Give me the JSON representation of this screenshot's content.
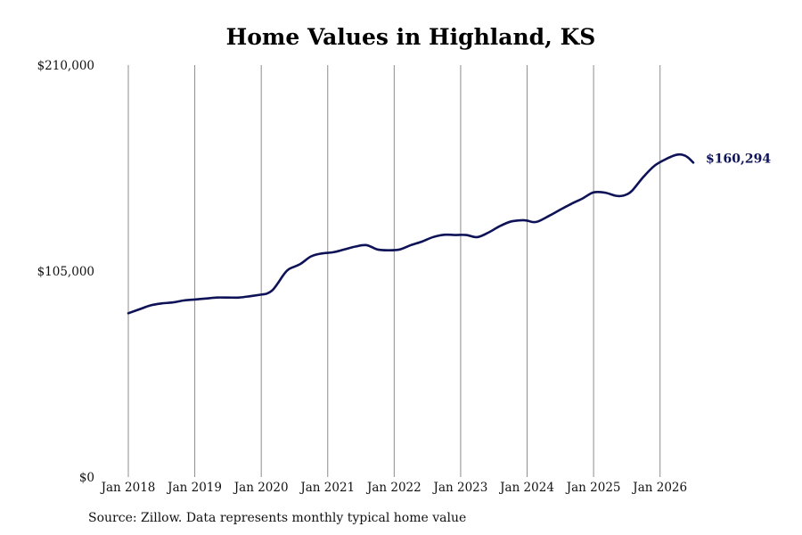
{
  "chart_data": {
    "type": "line",
    "title": "Home Values in Highland, KS",
    "xlabel": "",
    "ylabel": "",
    "y_ticks": [
      {
        "value": 210000,
        "label": "$210,000"
      },
      {
        "value": 105000,
        "label": "$105,000"
      },
      {
        "value": 0,
        "label": "$0"
      }
    ],
    "ylim": [
      0,
      210000
    ],
    "xlim": [
      "2018-01",
      "2026-07"
    ],
    "x_ticks": [
      {
        "value": "2018-01",
        "label": "Jan 2018"
      },
      {
        "value": "2019-01",
        "label": "Jan 2019"
      },
      {
        "value": "2020-01",
        "label": "Jan 2020"
      },
      {
        "value": "2021-01",
        "label": "Jan 2021"
      },
      {
        "value": "2022-01",
        "label": "Jan 2022"
      },
      {
        "value": "2023-01",
        "label": "Jan 2023"
      },
      {
        "value": "2024-01",
        "label": "Jan 2024"
      },
      {
        "value": "2025-01",
        "label": "Jan 2025"
      },
      {
        "value": "2026-01",
        "label": "Jan 2026"
      }
    ],
    "grid": "vertical",
    "line_color": "#0e1257",
    "end_label": "$160,294",
    "series": [
      {
        "x": [
          "2018-01",
          "2018-03",
          "2018-05",
          "2018-07",
          "2018-09",
          "2018-11",
          "2019-01",
          "2019-03",
          "2019-05",
          "2019-07",
          "2019-09",
          "2019-11",
          "2020-01",
          "2020-02",
          "2020-03",
          "2020-04",
          "2020-05",
          "2020-06",
          "2020-08",
          "2020-10",
          "2020-12",
          "2021-02",
          "2021-04",
          "2021-06",
          "2021-08",
          "2021-10",
          "2021-12",
          "2022-02",
          "2022-04",
          "2022-06",
          "2022-08",
          "2022-10",
          "2022-12",
          "2023-02",
          "2023-04",
          "2023-06",
          "2023-08",
          "2023-10",
          "2023-12",
          "2024-01",
          "2024-02",
          "2024-03",
          "2024-05",
          "2024-07",
          "2024-09",
          "2024-11",
          "2025-01",
          "2025-03",
          "2025-05",
          "2025-06",
          "2025-07",
          "2025-08",
          "2025-10",
          "2025-12",
          "2026-02",
          "2026-03",
          "2026-04",
          "2026-05",
          "2026-06",
          "2026-07"
        ],
        "values": [
          83500,
          85500,
          87500,
          88500,
          89000,
          90000,
          90500,
          91000,
          91500,
          91500,
          91500,
          92200,
          93000,
          93500,
          95200,
          98800,
          103000,
          106000,
          108500,
          112500,
          114000,
          114600,
          116000,
          117500,
          118200,
          116000,
          115600,
          116000,
          118200,
          120000,
          122300,
          123500,
          123400,
          123400,
          122300,
          124600,
          127800,
          130200,
          130900,
          130700,
          130000,
          130300,
          133200,
          136300,
          139300,
          142000,
          145100,
          145000,
          143400,
          143300,
          144100,
          146100,
          153000,
          158700,
          162000,
          163300,
          164300,
          164300,
          163000,
          160294
        ]
      }
    ]
  },
  "source_note": "Source: Zillow. Data represents monthly typical home value"
}
